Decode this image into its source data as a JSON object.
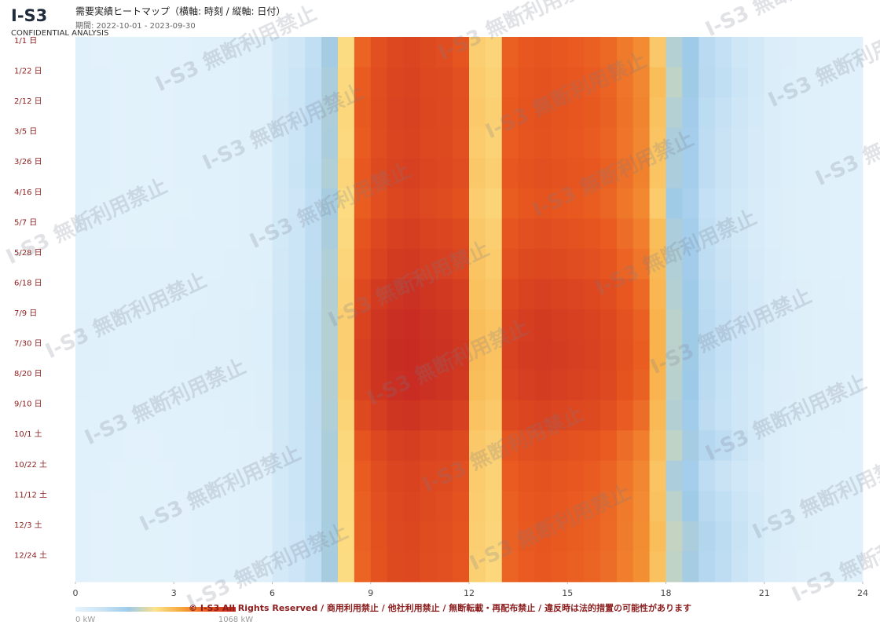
{
  "header": {
    "logo": "I-S3",
    "logo_sub": "CONFIDENTIAL ANALYSIS"
  },
  "watermark": "I-S3 無断利用禁止",
  "footer": "© I-S3 All Rights Reserved / 商用利用禁止 / 他社利用禁止 / 無断転載・再配布禁止 / 違反時は法的措置の可能性があります",
  "chart_data": {
    "type": "heatmap",
    "title": "需要実績ヒートマップ（横軸: 時刻 / 縦軸: 日付）",
    "subtitle": "期間: 2022-10-01 - 2023-09-30",
    "y_categories": [
      "1/1 日",
      "1/22 日",
      "2/12 日",
      "3/5 日",
      "3/26 日",
      "4/16 日",
      "5/7 日",
      "5/28 日",
      "6/18 日",
      "7/9 日",
      "7/30 日",
      "8/20 日",
      "9/10 日",
      "10/1 土",
      "10/22 土",
      "11/12 土",
      "12/3 土",
      "12/24 土"
    ],
    "xlim": [
      0,
      24
    ],
    "xticks": [
      0,
      3,
      6,
      9,
      12,
      15,
      18,
      21,
      24
    ],
    "zlim": [
      0,
      1068
    ],
    "colorscale": [
      "#e6f4fc",
      "#c9e3f5",
      "#9ecae9",
      "#fde28a",
      "#f7a43a",
      "#e8571f",
      "#c62a22"
    ],
    "colorbar_ticks": [
      {
        "value": 0,
        "label": "0 kW"
      },
      {
        "value": 1068,
        "label": "1068 kW"
      }
    ],
    "z": [
      [
        28,
        27,
        26,
        25,
        25,
        26,
        27,
        29,
        31,
        34,
        38,
        42,
        110,
        150,
        210,
        370,
        550,
        860,
        920,
        950,
        960,
        940,
        930,
        900,
        590,
        570,
        870,
        890,
        900,
        890,
        880,
        870,
        850,
        810,
        770,
        610,
        400,
        350,
        240,
        200,
        150,
        110,
        75,
        58,
        46,
        40,
        35,
        31
      ],
      [
        30,
        28,
        27,
        26,
        26,
        27,
        28,
        30,
        32,
        35,
        40,
        45,
        120,
        160,
        220,
        380,
        560,
        880,
        930,
        960,
        970,
        950,
        940,
        920,
        600,
        580,
        880,
        900,
        910,
        900,
        890,
        880,
        860,
        820,
        780,
        640,
        420,
        360,
        250,
        210,
        160,
        110,
        72,
        55,
        45,
        40,
        35,
        32
      ],
      [
        29,
        28,
        27,
        26,
        26,
        27,
        28,
        30,
        33,
        36,
        41,
        46,
        125,
        165,
        225,
        385,
        565,
        885,
        935,
        965,
        975,
        955,
        945,
        925,
        605,
        585,
        885,
        905,
        915,
        905,
        895,
        885,
        865,
        825,
        785,
        630,
        400,
        340,
        230,
        190,
        150,
        105,
        70,
        55,
        45,
        40,
        35,
        32
      ],
      [
        30,
        28,
        27,
        26,
        26,
        27,
        28,
        30,
        32,
        35,
        40,
        45,
        120,
        160,
        220,
        380,
        560,
        880,
        930,
        960,
        970,
        950,
        940,
        920,
        600,
        580,
        880,
        900,
        910,
        900,
        890,
        880,
        860,
        820,
        780,
        620,
        380,
        330,
        220,
        180,
        140,
        100,
        70,
        55,
        45,
        40,
        35,
        32
      ],
      [
        30,
        28,
        27,
        26,
        26,
        27,
        28,
        30,
        32,
        35,
        40,
        45,
        120,
        170,
        230,
        390,
        570,
        890,
        940,
        970,
        980,
        960,
        950,
        930,
        610,
        590,
        890,
        910,
        920,
        910,
        900,
        890,
        870,
        830,
        790,
        620,
        380,
        330,
        220,
        180,
        140,
        100,
        70,
        55,
        45,
        40,
        35,
        32
      ],
      [
        28,
        26,
        25,
        24,
        24,
        25,
        26,
        28,
        30,
        33,
        38,
        43,
        115,
        155,
        215,
        375,
        555,
        875,
        925,
        955,
        965,
        945,
        935,
        915,
        595,
        575,
        875,
        895,
        905,
        895,
        885,
        875,
        855,
        815,
        775,
        600,
        360,
        310,
        200,
        160,
        120,
        90,
        65,
        50,
        42,
        37,
        33,
        30
      ],
      [
        30,
        28,
        27,
        26,
        26,
        27,
        28,
        30,
        32,
        35,
        40,
        45,
        120,
        160,
        220,
        380,
        560,
        900,
        950,
        980,
        990,
        970,
        960,
        940,
        610,
        590,
        900,
        920,
        930,
        920,
        910,
        900,
        880,
        840,
        800,
        640,
        380,
        330,
        210,
        170,
        130,
        95,
        68,
        52,
        44,
        38,
        34,
        31
      ],
      [
        32,
        30,
        29,
        28,
        28,
        29,
        30,
        32,
        34,
        37,
        42,
        47,
        125,
        165,
        225,
        390,
        570,
        920,
        970,
        1000,
        1010,
        990,
        980,
        960,
        620,
        600,
        920,
        940,
        950,
        940,
        930,
        920,
        900,
        860,
        820,
        650,
        390,
        340,
        220,
        180,
        140,
        100,
        70,
        55,
        45,
        40,
        36,
        33
      ],
      [
        35,
        33,
        32,
        31,
        31,
        32,
        33,
        35,
        37,
        40,
        45,
        50,
        130,
        170,
        230,
        395,
        580,
        950,
        1000,
        1030,
        1040,
        1020,
        1010,
        990,
        630,
        610,
        950,
        970,
        980,
        970,
        960,
        950,
        930,
        890,
        850,
        660,
        400,
        350,
        230,
        190,
        150,
        105,
        75,
        58,
        48,
        42,
        38,
        35
      ],
      [
        38,
        36,
        35,
        34,
        34,
        35,
        36,
        38,
        40,
        43,
        48,
        53,
        135,
        175,
        235,
        400,
        590,
        970,
        1020,
        1050,
        1060,
        1040,
        1030,
        1010,
        640,
        620,
        970,
        990,
        1000,
        990,
        980,
        970,
        950,
        910,
        870,
        670,
        410,
        360,
        240,
        200,
        155,
        110,
        78,
        60,
        50,
        44,
        40,
        37
      ],
      [
        39,
        37,
        36,
        35,
        35,
        36,
        37,
        39,
        41,
        44,
        49,
        54,
        135,
        175,
        235,
        400,
        590,
        980,
        1030,
        1055,
        1065,
        1045,
        1035,
        1015,
        645,
        625,
        975,
        995,
        1005,
        995,
        985,
        975,
        955,
        915,
        875,
        670,
        410,
        360,
        240,
        200,
        155,
        110,
        78,
        60,
        50,
        44,
        40,
        37
      ],
      [
        37,
        35,
        34,
        33,
        33,
        34,
        35,
        37,
        39,
        42,
        47,
        52,
        130,
        170,
        230,
        395,
        585,
        975,
        1025,
        1050,
        1060,
        1040,
        1030,
        1010,
        640,
        620,
        965,
        985,
        995,
        985,
        975,
        965,
        945,
        905,
        865,
        665,
        405,
        355,
        235,
        195,
        150,
        108,
        76,
        58,
        49,
        43,
        39,
        36
      ],
      [
        34,
        32,
        31,
        30,
        30,
        31,
        32,
        34,
        36,
        39,
        44,
        49,
        128,
        168,
        228,
        390,
        575,
        940,
        990,
        1020,
        1030,
        1010,
        1000,
        980,
        625,
        605,
        940,
        960,
        970,
        960,
        950,
        940,
        920,
        880,
        840,
        650,
        395,
        345,
        228,
        188,
        145,
        104,
        73,
        56,
        47,
        41,
        37,
        34
      ],
      [
        31,
        29,
        28,
        27,
        27,
        28,
        29,
        31,
        33,
        36,
        41,
        46,
        122,
        162,
        222,
        382,
        562,
        900,
        950,
        980,
        990,
        970,
        960,
        940,
        610,
        590,
        900,
        920,
        930,
        920,
        910,
        900,
        880,
        840,
        800,
        640,
        420,
        370,
        260,
        220,
        170,
        115,
        74,
        56,
        46,
        41,
        36,
        33
      ],
      [
        30,
        28,
        27,
        26,
        26,
        27,
        28,
        30,
        32,
        35,
        40,
        45,
        120,
        160,
        220,
        380,
        560,
        880,
        930,
        960,
        970,
        950,
        940,
        920,
        600,
        580,
        880,
        900,
        910,
        900,
        890,
        880,
        860,
        820,
        780,
        620,
        380,
        330,
        220,
        180,
        140,
        100,
        70,
        55,
        45,
        40,
        35,
        32
      ],
      [
        29,
        27,
        26,
        25,
        25,
        26,
        27,
        29,
        31,
        34,
        39,
        44,
        118,
        158,
        218,
        378,
        558,
        870,
        920,
        950,
        960,
        940,
        930,
        910,
        595,
        575,
        870,
        890,
        900,
        890,
        880,
        870,
        850,
        810,
        770,
        630,
        410,
        360,
        250,
        210,
        160,
        110,
        72,
        55,
        45,
        40,
        35,
        31
      ],
      [
        28,
        27,
        26,
        25,
        25,
        26,
        27,
        29,
        31,
        34,
        38,
        43,
        115,
        155,
        215,
        375,
        555,
        865,
        915,
        945,
        955,
        935,
        925,
        905,
        590,
        570,
        865,
        885,
        895,
        885,
        875,
        865,
        845,
        805,
        765,
        640,
        430,
        380,
        270,
        230,
        175,
        120,
        78,
        60,
        48,
        42,
        36,
        32
      ],
      [
        28,
        27,
        26,
        25,
        25,
        26,
        27,
        29,
        31,
        34,
        38,
        43,
        112,
        152,
        212,
        372,
        552,
        860,
        910,
        940,
        950,
        930,
        920,
        900,
        585,
        565,
        860,
        880,
        890,
        880,
        870,
        860,
        840,
        800,
        760,
        630,
        420,
        370,
        260,
        220,
        170,
        115,
        75,
        58,
        46,
        41,
        35,
        31
      ]
    ]
  }
}
